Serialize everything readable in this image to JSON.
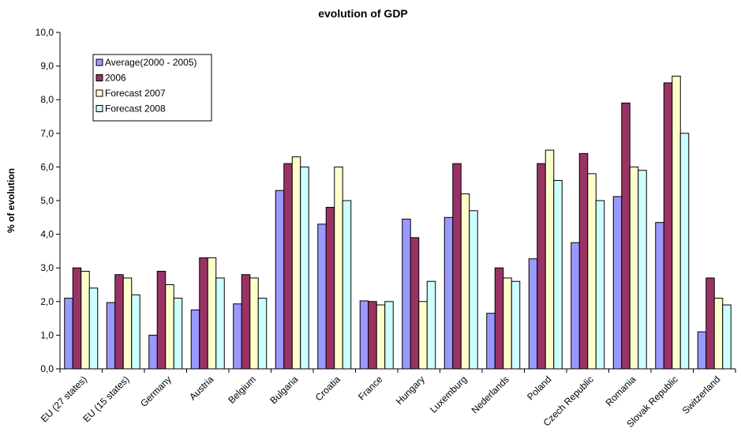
{
  "chart_data": {
    "type": "bar",
    "title": "evolution of GDP",
    "xlabel": "",
    "ylabel": "% of evolution",
    "ylim": [
      0,
      10
    ],
    "yticks": [
      "0,0",
      "1,0",
      "2,0",
      "3,0",
      "4,0",
      "5,0",
      "6,0",
      "7,0",
      "8,0",
      "9,0",
      "10,0"
    ],
    "legend_position": "top-left",
    "grid": false,
    "categories": [
      "EU (27 states)",
      "EU (15 states)",
      "Germany",
      "Austria",
      "Belgium",
      "Bulgaria",
      "Croatia",
      "France",
      "Hungary",
      "Luxemburg",
      "Nederlands",
      "Poland",
      "Czech Republic",
      "Romania",
      "Slovak Republic",
      "Switzerland"
    ],
    "series": [
      {
        "name": "Average(2000 - 2005)",
        "color": "#9999ff",
        "values": [
          2.1,
          1.97,
          1.0,
          1.75,
          1.93,
          5.3,
          4.3,
          2.02,
          4.45,
          4.5,
          1.65,
          3.27,
          3.75,
          5.12,
          4.35,
          1.1
        ]
      },
      {
        "name": "2006",
        "color": "#993366",
        "values": [
          3.0,
          2.8,
          2.9,
          3.3,
          2.8,
          6.1,
          4.8,
          2.0,
          3.9,
          6.1,
          3.0,
          6.1,
          6.4,
          7.9,
          8.5,
          2.7
        ]
      },
      {
        "name": "Forecast 2007",
        "color": "#ffffcc",
        "values": [
          2.9,
          2.7,
          2.5,
          3.3,
          2.7,
          6.3,
          6.0,
          1.9,
          2.0,
          5.2,
          2.7,
          6.5,
          5.8,
          6.0,
          8.7,
          2.1
        ]
      },
      {
        "name": "Forecast 2008",
        "color": "#ccffff",
        "values": [
          2.4,
          2.2,
          2.1,
          2.7,
          2.1,
          6.0,
          5.0,
          2.0,
          2.6,
          4.7,
          2.6,
          5.6,
          5.0,
          5.9,
          7.0,
          1.9
        ]
      }
    ]
  }
}
